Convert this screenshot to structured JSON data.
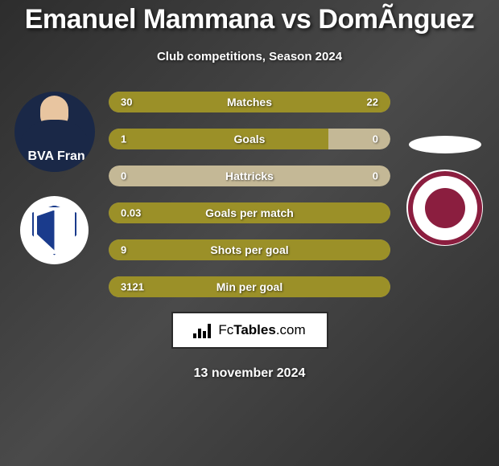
{
  "title": "Emanuel Mammana vs DomÃ­nguez",
  "subtitle": "Club competitions, Season 2024",
  "date": "13 november 2024",
  "logo": {
    "text_prefix": "Fc",
    "text_bold": "Tables",
    "text_suffix": ".com"
  },
  "colors": {
    "bar_fill": "#9b9028",
    "bar_track": "#c4b896",
    "text": "#ffffff",
    "player1_club_primary": "#1a3b8c",
    "player2_club_primary": "#8b1e3f"
  },
  "player1": {
    "sponsor_text": "BVA Fran"
  },
  "stats": [
    {
      "label": "Matches",
      "left_value": "30",
      "right_value": "22",
      "left_width_pct": 57,
      "right_width_pct": 43,
      "full": false
    },
    {
      "label": "Goals",
      "left_value": "1",
      "right_value": "0",
      "left_width_pct": 78,
      "right_width_pct": 0,
      "full": false
    },
    {
      "label": "Hattricks",
      "left_value": "0",
      "right_value": "0",
      "left_width_pct": 0,
      "right_width_pct": 0,
      "full": false
    },
    {
      "label": "Goals per match",
      "left_value": "0.03",
      "right_value": "",
      "left_width_pct": 100,
      "right_width_pct": 0,
      "full": true
    },
    {
      "label": "Shots per goal",
      "left_value": "9",
      "right_value": "",
      "left_width_pct": 100,
      "right_width_pct": 0,
      "full": true
    },
    {
      "label": "Min per goal",
      "left_value": "3121",
      "right_value": "",
      "left_width_pct": 100,
      "right_width_pct": 0,
      "full": true
    }
  ]
}
